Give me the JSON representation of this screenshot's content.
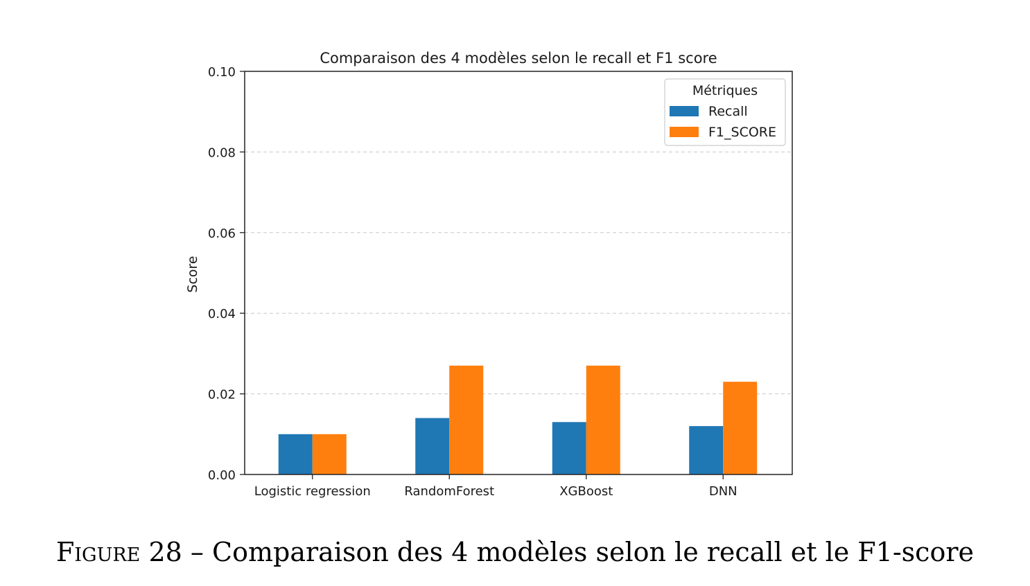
{
  "chart_data": {
    "type": "bar",
    "title": "Comparaison des 4 modèles selon le recall et F1 score",
    "xlabel": "",
    "ylabel": "Score",
    "ylim": [
      0,
      0.1
    ],
    "yticks": [
      "0.00",
      "0.02",
      "0.04",
      "0.06",
      "0.08",
      "0.10"
    ],
    "categories": [
      "Logistic regression",
      "RandomForest",
      "XGBoost",
      "DNN"
    ],
    "series": [
      {
        "name": "Recall",
        "color": "#1f77b4",
        "values": [
          0.01,
          0.014,
          0.013,
          0.012
        ]
      },
      {
        "name": "F1_SCORE",
        "color": "#ff7f0e",
        "values": [
          0.01,
          0.027,
          0.027,
          0.023
        ]
      }
    ],
    "legend": {
      "title": "Métriques",
      "position": "top-right"
    },
    "grid": "horizontal-dashed"
  },
  "caption": {
    "label": "Figure 28",
    "text": "– Comparaison des 4 modèles selon le recall et le F1-score"
  }
}
